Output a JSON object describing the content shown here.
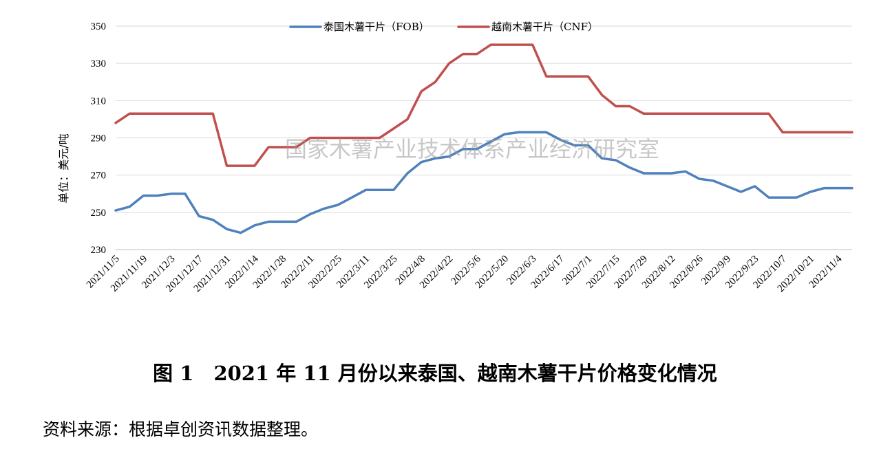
{
  "chart_data": {
    "type": "line",
    "title": "",
    "ylabel": "单位：美元/吨",
    "xlabel": "",
    "ylim": [
      230,
      350
    ],
    "yticks": [
      230,
      250,
      270,
      290,
      310,
      330,
      350
    ],
    "grid": "horizontal",
    "legend_position": "top-center",
    "x_tick_labels": [
      "2021/11/5",
      "2021/11/19",
      "2021/12/3",
      "2021/12/17",
      "2021/12/31",
      "2022/1/14",
      "2022/1/28",
      "2022/2/11",
      "2022/2/25",
      "2022/3/11",
      "2022/3/25",
      "2022/4/8",
      "2022/4/22",
      "2022/5/6",
      "2022/5/20",
      "2022/6/3",
      "2022/6/17",
      "2022/7/1",
      "2022/7/15",
      "2022/7/29",
      "2022/8/12",
      "2022/8/26",
      "2022/9/9",
      "2022/9/23",
      "2022/10/7",
      "2022/10/21",
      "2022/11/4"
    ],
    "x": [
      "2021/11/5",
      "2021/11/12",
      "2021/11/19",
      "2021/11/26",
      "2021/12/3",
      "2021/12/10",
      "2021/12/17",
      "2021/12/24",
      "2021/12/31",
      "2022/1/7",
      "2022/1/14",
      "2022/1/21",
      "2022/1/28",
      "2022/2/4",
      "2022/2/11",
      "2022/2/18",
      "2022/2/25",
      "2022/3/4",
      "2022/3/11",
      "2022/3/18",
      "2022/3/25",
      "2022/4/1",
      "2022/4/8",
      "2022/4/15",
      "2022/4/22",
      "2022/4/29",
      "2022/5/6",
      "2022/5/13",
      "2022/5/20",
      "2022/5/27",
      "2022/6/3",
      "2022/6/10",
      "2022/6/17",
      "2022/6/24",
      "2022/7/1",
      "2022/7/8",
      "2022/7/15",
      "2022/7/22",
      "2022/7/29",
      "2022/8/5",
      "2022/8/12",
      "2022/8/19",
      "2022/8/26",
      "2022/9/2",
      "2022/9/9",
      "2022/9/16",
      "2022/9/23",
      "2022/9/30",
      "2022/10/7",
      "2022/10/14",
      "2022/10/21",
      "2022/10/28",
      "2022/11/4",
      "2022/11/11"
    ],
    "series": [
      {
        "name": "泰国木薯干片（FOB）",
        "color": "#4f81bd",
        "values": [
          251,
          253,
          259,
          259,
          260,
          260,
          248,
          246,
          241,
          239,
          243,
          245,
          245,
          245,
          249,
          252,
          254,
          258,
          262,
          262,
          262,
          271,
          277,
          279,
          280,
          284,
          284,
          288,
          292,
          293,
          293,
          293,
          289,
          286,
          286,
          279,
          278,
          274,
          271,
          271,
          271,
          272,
          268,
          267,
          264,
          261,
          264,
          258,
          258,
          258,
          261,
          263,
          263,
          263
        ]
      },
      {
        "name": "越南木薯干片（CNF）",
        "color": "#c0504d",
        "values": [
          298,
          303,
          303,
          303,
          303,
          303,
          303,
          303,
          275,
          275,
          275,
          285,
          285,
          285,
          290,
          290,
          290,
          290,
          290,
          290,
          295,
          300,
          315,
          320,
          330,
          335,
          335,
          340,
          340,
          340,
          340,
          323,
          323,
          323,
          323,
          313,
          307,
          307,
          303,
          303,
          303,
          303,
          303,
          303,
          303,
          303,
          303,
          303,
          293,
          293,
          293,
          293,
          293,
          293
        ]
      }
    ],
    "annotations": [
      "国家木薯产业技术体系产业经济研究室"
    ]
  },
  "caption": "图 1　2021 年 11 月份以来泰国、越南木薯干片价格变化情况",
  "source": "资料来源：根据卓创资讯数据整理。"
}
